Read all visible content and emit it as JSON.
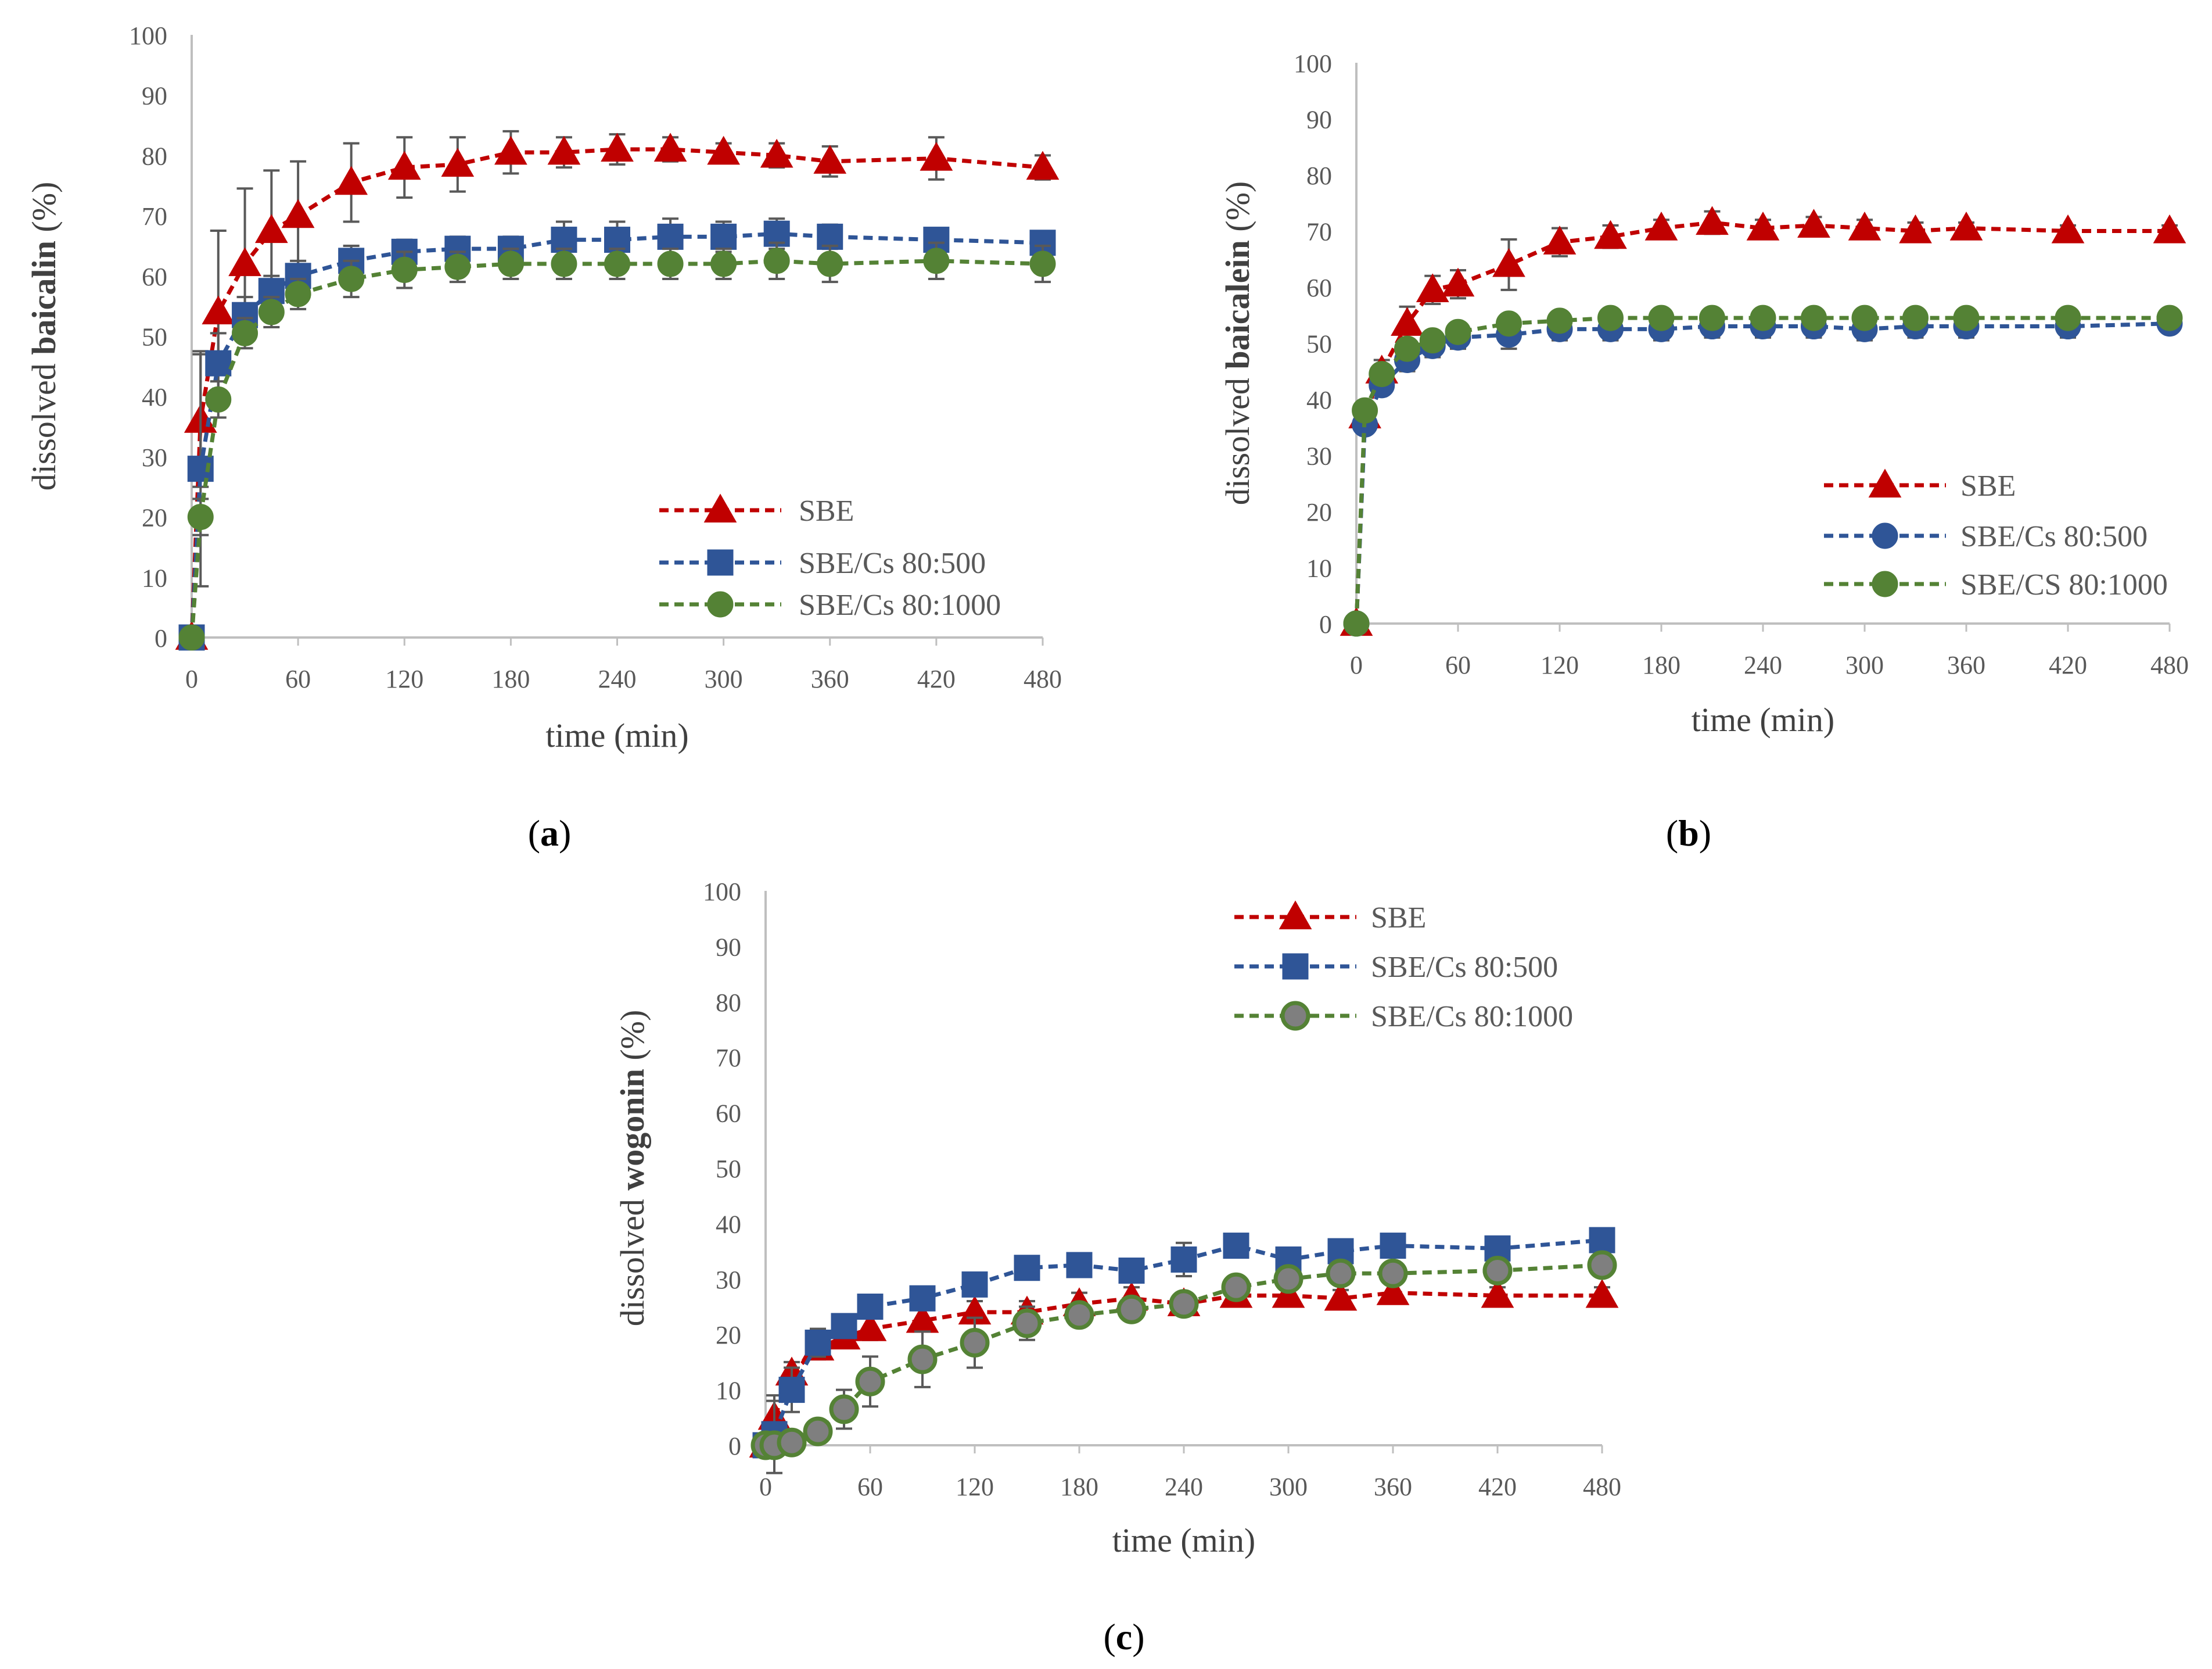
{
  "figure": {
    "panel_labels": [
      {
        "open": "(",
        "letter": "a",
        "close": ")"
      },
      {
        "open": "(",
        "letter": "b",
        "close": ")"
      },
      {
        "open": "(",
        "letter": "c",
        "close": ")"
      }
    ]
  },
  "colors": {
    "SBE": "#C00000",
    "SBE_marker": "#C00000",
    "SBE_Cs_80_500": "#2F5597",
    "SBE_Cs_80_1000": "#548235",
    "error_bar": "#595959",
    "axis": "#BFBFBF",
    "tick_text": "#595959"
  },
  "chart_data": [
    {
      "type": "line",
      "panel": "a",
      "ylabel": {
        "prefix": "dissolved ",
        "bold": "baicalin",
        "suffix": " (%)"
      },
      "xlabel": "time (min)",
      "xlim": [
        0,
        480
      ],
      "ylim": [
        0,
        100
      ],
      "xticks": [
        0,
        60,
        120,
        180,
        240,
        300,
        360,
        420,
        480
      ],
      "yticks": [
        0,
        10,
        20,
        30,
        40,
        50,
        60,
        70,
        80,
        90,
        100
      ],
      "grid": false,
      "legend_position": "lower-right",
      "series": [
        {
          "name": "SBE",
          "marker": "triangle",
          "x": [
            0,
            5,
            15,
            30,
            45,
            60,
            90,
            120,
            150,
            180,
            210,
            240,
            270,
            300,
            330,
            360,
            420,
            480
          ],
          "y": [
            0,
            36,
            54,
            62,
            67.5,
            70,
            75.5,
            78,
            78.5,
            80.5,
            80.5,
            81,
            81,
            80.5,
            80,
            79,
            79.5,
            78
          ],
          "err": [
            0,
            11,
            13.5,
            12.5,
            10,
            9,
            6.5,
            5,
            4.5,
            3.5,
            2.5,
            2.5,
            2,
            1.5,
            2,
            2.5,
            3.5,
            2
          ]
        },
        {
          "name": "SBE/Cs 80:500",
          "marker": "square",
          "x": [
            0,
            5,
            15,
            30,
            45,
            60,
            90,
            120,
            150,
            180,
            210,
            240,
            270,
            300,
            330,
            360,
            420,
            480
          ],
          "y": [
            0,
            28,
            45.5,
            53.5,
            57.5,
            60,
            62.5,
            64,
            64.5,
            64.5,
            66,
            66,
            66.5,
            66.5,
            67,
            66.5,
            66,
            65.5
          ],
          "err": [
            0,
            19.5,
            5,
            3,
            2.5,
            2.5,
            2.5,
            2,
            2,
            2,
            3,
            3,
            3,
            2.5,
            2.5,
            2,
            1.5,
            1
          ]
        },
        {
          "name": "SBE/Cs 80:1000",
          "marker": "circle",
          "x": [
            0,
            5,
            15,
            30,
            45,
            60,
            90,
            120,
            150,
            180,
            210,
            240,
            270,
            300,
            330,
            360,
            420,
            480
          ],
          "y": [
            0,
            20,
            39.5,
            50.5,
            54,
            57,
            59.5,
            61,
            61.5,
            62,
            62,
            62,
            62,
            62,
            62.5,
            62,
            62.5,
            62
          ],
          "err": [
            0,
            3,
            3,
            2.5,
            2.5,
            2.5,
            3,
            3,
            2.5,
            2.5,
            2.5,
            2.5,
            2.5,
            2.5,
            3,
            3,
            3,
            3
          ]
        }
      ]
    },
    {
      "type": "line",
      "panel": "b",
      "ylabel": {
        "prefix": "dissolved ",
        "bold": "baicalein",
        "suffix": " (%)"
      },
      "xlabel": "time (min)",
      "xlim": [
        0,
        480
      ],
      "ylim": [
        0,
        100
      ],
      "xticks": [
        0,
        60,
        120,
        180,
        240,
        300,
        360,
        420,
        480
      ],
      "yticks": [
        0,
        10,
        20,
        30,
        40,
        50,
        60,
        70,
        80,
        90,
        100
      ],
      "grid": false,
      "legend_position": "lower-right",
      "series": [
        {
          "name": "SBE",
          "marker": "triangle",
          "x": [
            0,
            5,
            15,
            30,
            45,
            60,
            90,
            120,
            150,
            180,
            210,
            240,
            270,
            300,
            330,
            360,
            420,
            480
          ],
          "y": [
            0,
            37,
            45,
            53.5,
            59.5,
            60.5,
            64,
            68,
            69,
            70.5,
            71.5,
            70.5,
            71,
            70.5,
            70,
            70.5,
            70,
            70
          ],
          "err": [
            0,
            1.5,
            2,
            3,
            2.5,
            2.5,
            4.5,
            2.5,
            2,
            1.5,
            2,
            1.5,
            1.5,
            1.5,
            1.5,
            1,
            1,
            1
          ]
        },
        {
          "name": "SBE/Cs 80:500",
          "marker": "circle",
          "x": [
            0,
            5,
            15,
            30,
            45,
            60,
            90,
            120,
            150,
            180,
            210,
            240,
            270,
            300,
            330,
            360,
            420,
            480
          ],
          "y": [
            0,
            35.5,
            42.5,
            47,
            49.5,
            51,
            51.5,
            52.5,
            52.5,
            52.5,
            53,
            53,
            53,
            52.5,
            53,
            53,
            53,
            53.5
          ],
          "err": [
            0,
            1.5,
            1.5,
            2,
            2,
            2,
            2.5,
            2,
            2,
            2,
            2,
            2,
            2,
            2,
            2,
            2,
            2,
            1.5
          ]
        },
        {
          "name": "SBE/CS 80:1000",
          "marker": "circle",
          "x": [
            0,
            5,
            15,
            30,
            45,
            60,
            90,
            120,
            150,
            180,
            210,
            240,
            270,
            300,
            330,
            360,
            420,
            480
          ],
          "y": [
            0,
            38,
            44.5,
            49,
            50.5,
            52,
            53.5,
            54,
            54.5,
            54.5,
            54.5,
            54.5,
            54.5,
            54.5,
            54.5,
            54.5,
            54.5,
            54.5
          ],
          "err": [
            0,
            1,
            1,
            1,
            1,
            1,
            1,
            1,
            1,
            1,
            1,
            1,
            1,
            1,
            1,
            1,
            1,
            1
          ]
        }
      ]
    },
    {
      "type": "line",
      "panel": "c",
      "ylabel": {
        "prefix": "dissolved ",
        "bold": "wogonin",
        "suffix": " (%)"
      },
      "xlabel": "time (min)",
      "xlim": [
        0,
        480
      ],
      "ylim": [
        0,
        100
      ],
      "xticks": [
        0,
        60,
        120,
        180,
        240,
        300,
        360,
        420,
        480
      ],
      "yticks": [
        0,
        10,
        20,
        30,
        40,
        50,
        60,
        70,
        80,
        90,
        100
      ],
      "grid": false,
      "legend_position": "top-right",
      "series": [
        {
          "name": "SBE",
          "marker": "triangle",
          "x": [
            0,
            5,
            15,
            30,
            45,
            60,
            90,
            120,
            150,
            180,
            210,
            240,
            270,
            300,
            330,
            360,
            420,
            480
          ],
          "y": [
            0,
            5,
            13,
            17.5,
            19.5,
            21,
            22.5,
            24,
            24,
            25.5,
            26.5,
            25.5,
            27,
            27,
            26.5,
            27.5,
            27,
            27
          ],
          "err": [
            0,
            3,
            2,
            2,
            2,
            2,
            2,
            2,
            2,
            2,
            2,
            2,
            1.5,
            1.5,
            1.5,
            1.5,
            1.5,
            1.5
          ]
        },
        {
          "name": "SBE/Cs 80:500",
          "marker": "square",
          "x": [
            0,
            5,
            15,
            30,
            45,
            60,
            90,
            120,
            150,
            180,
            210,
            240,
            270,
            300,
            330,
            360,
            420,
            480
          ],
          "y": [
            0,
            2,
            10,
            18.5,
            21.5,
            25,
            26.5,
            29,
            32,
            32.5,
            31.5,
            33.5,
            36,
            33.5,
            35,
            36,
            35.5,
            37
          ],
          "err": [
            0,
            7,
            4,
            2.5,
            2,
            2,
            2,
            2,
            2,
            1.5,
            1.5,
            3,
            2,
            2,
            1.5,
            1.5,
            1.5,
            1.5
          ]
        },
        {
          "name": "SBE/Cs 80:1000",
          "marker": "circle-outlined",
          "x": [
            0,
            5,
            15,
            30,
            45,
            60,
            90,
            120,
            150,
            180,
            210,
            240,
            270,
            300,
            330,
            360,
            420,
            480
          ],
          "y": [
            0,
            0,
            0.5,
            2.5,
            6.5,
            11.5,
            15.5,
            18.5,
            22,
            23.5,
            24.5,
            25.5,
            28.5,
            30,
            31,
            31,
            31.5,
            32.5
          ],
          "err": [
            0,
            0.5,
            1,
            1.5,
            3.5,
            4.5,
            5,
            4.5,
            3,
            2,
            2,
            2,
            1.5,
            1.5,
            1.5,
            1.5,
            1.5,
            1.5
          ]
        }
      ]
    }
  ]
}
